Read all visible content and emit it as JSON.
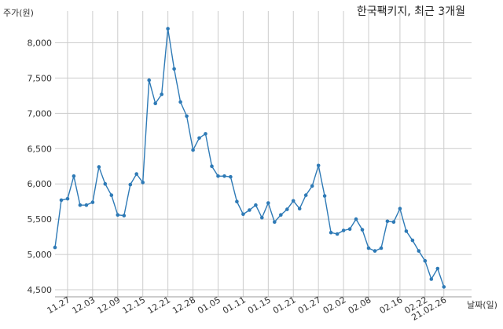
{
  "chart_data": {
    "type": "line",
    "title": "한국팩키지, 최근 3개월",
    "ylabel": "주가(원)",
    "xlabel": "날짜(일)",
    "ylim": [
      4400,
      8450
    ],
    "yticks": [
      4500,
      5000,
      5500,
      6000,
      6500,
      7000,
      7500,
      8000
    ],
    "ytick_labels": [
      "4,500",
      "5,000",
      "5,500",
      "6,000",
      "6,500",
      "7,000",
      "7,500",
      "8,000"
    ],
    "xtick_labels": [
      "11.27",
      "12.03",
      "12.09",
      "12.15",
      "12.21",
      "12.28",
      "01.05",
      "01.11",
      "01.15",
      "01.21",
      "01.27",
      "02.02",
      "02.08",
      "02.16",
      "02.22",
      "21.02.26"
    ],
    "xtick_indices": [
      2,
      6,
      10,
      14,
      18,
      22,
      26,
      30,
      34,
      38,
      42,
      46,
      50,
      55,
      59,
      62
    ],
    "grid": true,
    "series": [
      {
        "color": "#2e7ab6",
        "values": [
          5100,
          5770,
          5790,
          6110,
          5700,
          5700,
          5740,
          6240,
          6000,
          5840,
          5560,
          5550,
          5990,
          6140,
          6020,
          7470,
          7140,
          7270,
          8200,
          7630,
          7160,
          6960,
          6480,
          6650,
          6710,
          6250,
          6110,
          6110,
          6100,
          5750,
          5570,
          5630,
          5700,
          5520,
          5730,
          5460,
          5560,
          5640,
          5760,
          5650,
          5840,
          5970,
          6260,
          5830,
          5310,
          5290,
          5340,
          5360,
          5500,
          5350,
          5090,
          5050,
          5090,
          5470,
          5460,
          5650,
          5330,
          5200,
          5050,
          4910,
          4650,
          4800,
          4540
        ]
      }
    ]
  }
}
